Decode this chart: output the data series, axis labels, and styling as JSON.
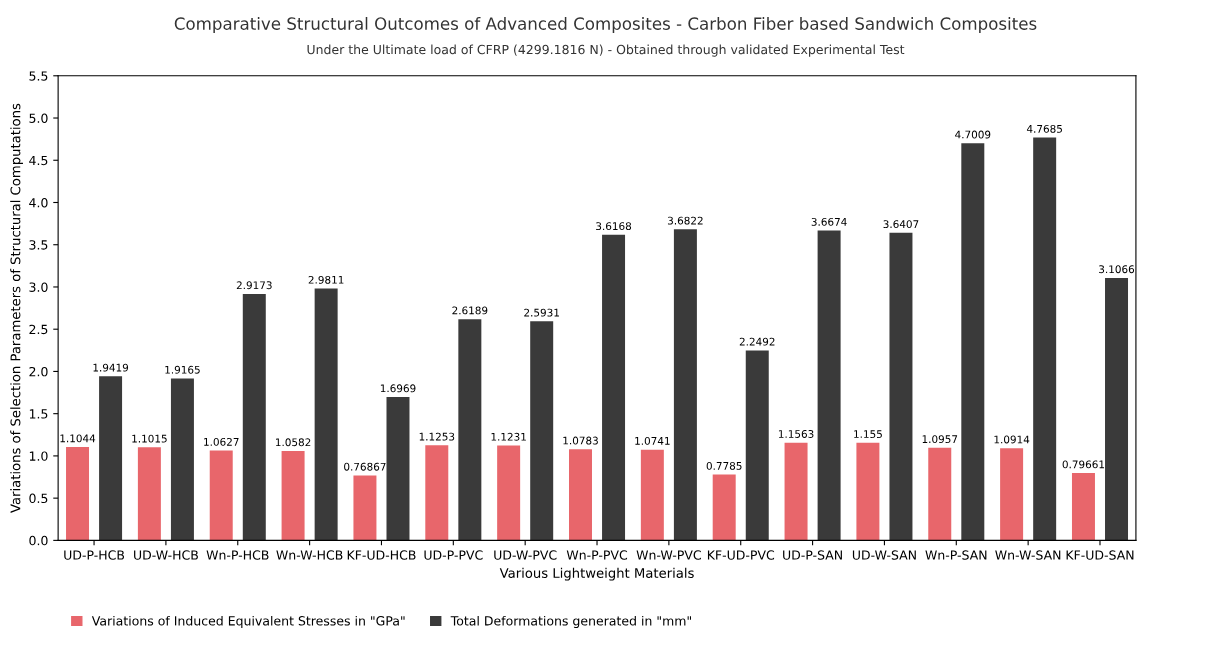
{
  "chart_data": {
    "type": "bar",
    "title": "Comparative Structural Outcomes of Advanced Composites - Carbon Fiber based Sandwich Composites",
    "subtitle": "Under the Ultimate load of CFRP (4299.1816 N) - Obtained through validated Experimental Test",
    "xlabel": "Various Lightweight Materials",
    "ylabel": "Variations of Selection Parameters of Structural Computations",
    "categories": [
      "UD-P-HCB",
      "UD-W-HCB",
      "Wn-P-HCB",
      "Wn-W-HCB",
      "KF-UD-HCB",
      "UD-P-PVC",
      "UD-W-PVC",
      "Wn-P-PVC",
      "Wn-W-PVC",
      "KF-UD-PVC",
      "UD-P-SAN",
      "UD-W-SAN",
      "Wn-P-SAN",
      "Wn-W-SAN",
      "KF-UD-SAN"
    ],
    "series": [
      {
        "name": "Variations of Induced Equivalent Stresses in \"GPa\"",
        "color": "#e8666b",
        "values": [
          1.1044,
          1.1015,
          1.0627,
          1.0582,
          0.76867,
          1.1253,
          1.1231,
          1.0783,
          1.0741,
          0.7785,
          1.1563,
          1.155,
          1.0957,
          1.0914,
          0.79661
        ]
      },
      {
        "name": "Total Deformations generated in \"mm\"",
        "color": "#3a3a3a",
        "values": [
          1.9419,
          1.9165,
          2.9173,
          2.9811,
          1.6969,
          2.6189,
          2.5931,
          3.6168,
          3.6822,
          2.2492,
          3.6674,
          3.6407,
          4.7009,
          4.7685,
          3.1066
        ]
      }
    ],
    "ylim": [
      0,
      5.5
    ],
    "yticks": [
      {
        "value": 0,
        "label": "0.0"
      },
      {
        "value": 0.5,
        "label": "0.5"
      },
      {
        "value": 1,
        "label": "1.0"
      },
      {
        "value": 1.5,
        "label": "1.5"
      },
      {
        "value": 2,
        "label": "2.0"
      },
      {
        "value": 2.5,
        "label": "2.5"
      },
      {
        "value": 3,
        "label": "3.0"
      },
      {
        "value": 3.5,
        "label": "3.5"
      },
      {
        "value": 4,
        "label": "4.0"
      },
      {
        "value": 4.5,
        "label": "4.5"
      },
      {
        "value": 5,
        "label": "5.0"
      },
      {
        "value": 5.5,
        "label": "5.5"
      }
    ],
    "data_labels": true,
    "grid": false,
    "legend": "bottom left"
  }
}
